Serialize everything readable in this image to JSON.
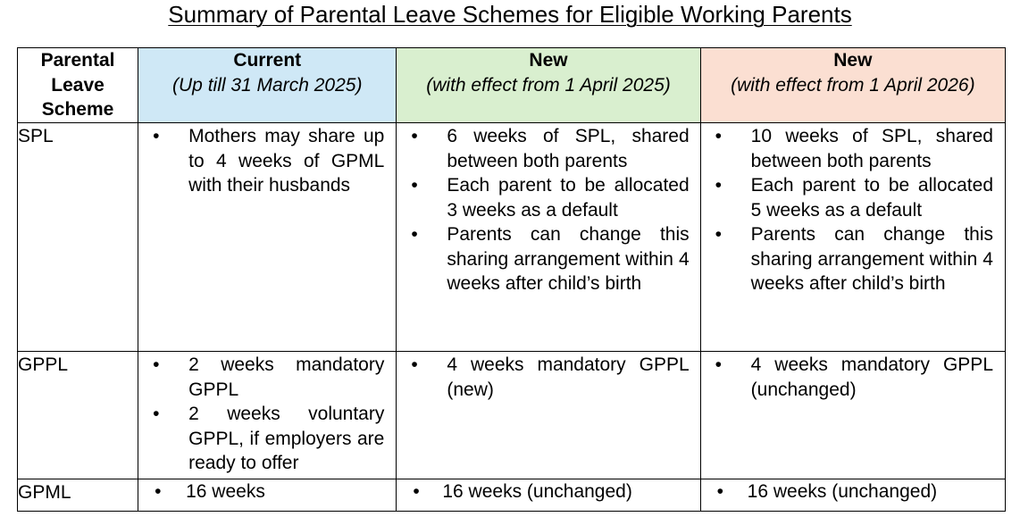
{
  "title": "Summary of Parental Leave Schemes for Eligible Working Parents",
  "table": {
    "headers": [
      {
        "main": "Parental Leave Scheme",
        "sub": ""
      },
      {
        "main": "Current",
        "sub": "(Up till 31 March 2025)"
      },
      {
        "main": "New",
        "sub": "(with effect from 1 April 2025)"
      },
      {
        "main": "New",
        "sub": "(with effect from 1 April 2026)"
      }
    ],
    "header_colors": [
      "#ffffff",
      "#cfe8f6",
      "#d9efcf",
      "#fbdfd2"
    ],
    "rows": [
      {
        "label": "SPL",
        "current": [
          "Mothers may share up to 4 weeks of GPML with their husbands"
        ],
        "new_2025": [
          "6 weeks of SPL, shared between both parents",
          "Each parent to be allocated 3 weeks as a default",
          "Parents can change this sharing arrangement within 4 weeks after child’s birth"
        ],
        "new_2026": [
          "10 weeks of SPL, shared between both parents",
          "Each parent to be allocated 5 weeks as a default",
          "Parents can change this sharing arrangement within 4 weeks after child’s birth"
        ]
      },
      {
        "label": "GPPL",
        "current": [
          "2 weeks mandatory GPPL",
          "2 weeks voluntary GPPL, if employers are ready to offer"
        ],
        "new_2025": [
          "4 weeks mandatory GPPL (new)"
        ],
        "new_2026": [
          "4 weeks mandatory GPPL (unchanged)"
        ]
      },
      {
        "label": "GPML",
        "current": [
          "16 weeks"
        ],
        "new_2025": [
          "16 weeks (unchanged)"
        ],
        "new_2026": [
          "16 weeks (unchanged)"
        ]
      }
    ]
  }
}
